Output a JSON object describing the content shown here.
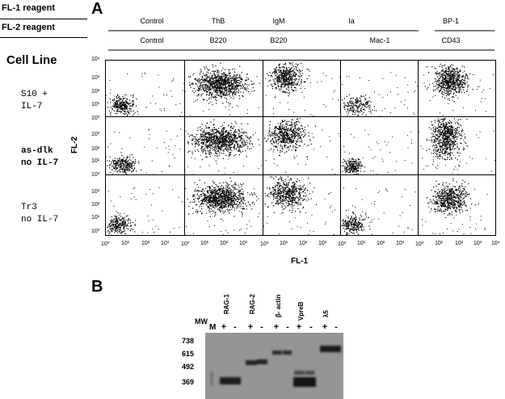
{
  "panel_a": {
    "letter": "A",
    "fl1_label": "FL-1 reagent",
    "fl2_label": "FL-2 reagent",
    "cell_line_label": "Cell Line",
    "columns": [
      {
        "fl1": "Control",
        "fl2": "Control"
      },
      {
        "fl1": "ThB",
        "fl2": "B220"
      },
      {
        "fl1": "IgM",
        "fl2": "B220"
      },
      {
        "fl1": "Ia",
        "fl2": "Mac-1"
      },
      {
        "fl1": "BP-1",
        "fl2": "CD43"
      }
    ],
    "rows": [
      {
        "line1": "S10 +",
        "line2": "IL-7"
      },
      {
        "line1": "as-dlk",
        "line2": "no IL-7"
      },
      {
        "line1": "Tr3",
        "line2": "no IL-7"
      }
    ],
    "y_axis_label": "FL-2",
    "x_axis_label": "FL-1",
    "y_ticks": [
      "10⁴",
      "10³",
      "10²",
      "10¹",
      "10⁰"
    ],
    "x_ticks": [
      "10⁰",
      "10¹",
      "10²",
      "10³",
      "10⁴"
    ]
  },
  "panel_b": {
    "letter": "B",
    "mw_label": "MW",
    "marker_lane": "M",
    "mw_values": [
      "738",
      "615",
      "492",
      "369"
    ],
    "lanes": [
      {
        "name": "RAG-1",
        "plus": "+",
        "minus": "-"
      },
      {
        "name": "RAG-2",
        "plus": "+",
        "minus": "-"
      },
      {
        "name": "β- actin",
        "plus": "+",
        "minus": "-"
      },
      {
        "name": "VpreB",
        "plus": "+",
        "minus": "-"
      },
      {
        "name": "λ5",
        "plus": "+",
        "minus": "-"
      }
    ]
  }
}
